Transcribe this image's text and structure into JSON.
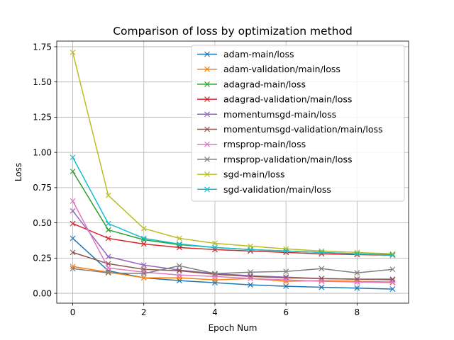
{
  "chart_data": {
    "type": "line",
    "title": "Comparison of loss by optimization method",
    "xlabel": "Epoch Num",
    "ylabel": "Loss",
    "xlim": [
      -0.45,
      9.45
    ],
    "ylim": [
      -0.07,
      1.79
    ],
    "xticks": [
      0,
      2,
      4,
      6,
      8
    ],
    "yticks": [
      0.0,
      0.25,
      0.5,
      0.75,
      1.0,
      1.25,
      1.5,
      1.75
    ],
    "ytick_labels": [
      "0.00",
      "0.25",
      "0.50",
      "0.75",
      "1.00",
      "1.25",
      "1.50",
      "1.75"
    ],
    "grid": true,
    "legend_position": "top-right",
    "marker": "x",
    "x": [
      0,
      1,
      2,
      3,
      4,
      5,
      6,
      7,
      8,
      9
    ],
    "series": [
      {
        "name": "adam-main/loss",
        "color": "#1f77b4",
        "values": [
          0.39,
          0.16,
          0.11,
          0.09,
          0.075,
          0.06,
          0.05,
          0.043,
          0.037,
          0.03
        ]
      },
      {
        "name": "adam-validation/main/loss",
        "color": "#ff7f0e",
        "values": [
          0.19,
          0.15,
          0.11,
          0.11,
          0.095,
          0.105,
          0.085,
          0.09,
          0.085,
          0.08
        ]
      },
      {
        "name": "adagrad-main/loss",
        "color": "#2ca02c",
        "values": [
          0.865,
          0.45,
          0.38,
          0.345,
          0.325,
          0.31,
          0.3,
          0.29,
          0.28,
          0.275
        ]
      },
      {
        "name": "adagrad-validation/main/loss",
        "color": "#d62728",
        "values": [
          0.495,
          0.39,
          0.35,
          0.325,
          0.31,
          0.3,
          0.29,
          0.28,
          0.275,
          0.27
        ]
      },
      {
        "name": "momentumsgd-main/loss",
        "color": "#9467bd",
        "values": [
          0.585,
          0.26,
          0.2,
          0.165,
          0.14,
          0.125,
          0.115,
          0.105,
          0.1,
          0.095
        ]
      },
      {
        "name": "momentumsgd-validation/main/loss",
        "color": "#8c564b",
        "values": [
          0.29,
          0.21,
          0.17,
          0.16,
          0.135,
          0.12,
          0.11,
          0.105,
          0.1,
          0.1
        ]
      },
      {
        "name": "rmsprop-main/loss",
        "color": "#e377c2",
        "values": [
          0.655,
          0.18,
          0.15,
          0.13,
          0.12,
          0.105,
          0.095,
          0.085,
          0.08,
          0.075
        ]
      },
      {
        "name": "rmsprop-validation/main/loss",
        "color": "#7f7f7f",
        "values": [
          0.175,
          0.145,
          0.14,
          0.195,
          0.14,
          0.15,
          0.155,
          0.175,
          0.145,
          0.17
        ]
      },
      {
        "name": "sgd-main/loss",
        "color": "#bcbd22",
        "values": [
          1.71,
          0.695,
          0.46,
          0.39,
          0.355,
          0.335,
          0.315,
          0.3,
          0.29,
          0.28
        ]
      },
      {
        "name": "sgd-validation/main/loss",
        "color": "#17becf",
        "values": [
          0.965,
          0.495,
          0.39,
          0.35,
          0.325,
          0.31,
          0.3,
          0.29,
          0.28,
          0.27
        ]
      }
    ]
  }
}
